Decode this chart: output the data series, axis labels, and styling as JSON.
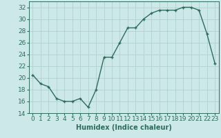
{
  "x": [
    0,
    1,
    2,
    3,
    4,
    5,
    6,
    7,
    8,
    9,
    10,
    11,
    12,
    13,
    14,
    15,
    16,
    17,
    18,
    19,
    20,
    21,
    22,
    23
  ],
  "y": [
    20.5,
    19.0,
    18.5,
    16.5,
    16.0,
    16.0,
    16.5,
    15.0,
    18.0,
    23.5,
    23.5,
    26.0,
    28.5,
    28.5,
    30.0,
    31.0,
    31.5,
    31.5,
    31.5,
    32.0,
    32.0,
    31.5,
    27.5,
    22.5
  ],
  "line_color": "#2e6b5e",
  "marker": "+",
  "bg_color": "#cce8e8",
  "grid_color": "#b0d0d0",
  "xlabel": "Humidex (Indice chaleur)",
  "xlim": [
    -0.5,
    23.5
  ],
  "ylim": [
    14,
    33
  ],
  "yticks": [
    14,
    16,
    18,
    20,
    22,
    24,
    26,
    28,
    30,
    32
  ],
  "xticks": [
    0,
    1,
    2,
    3,
    4,
    5,
    6,
    7,
    8,
    9,
    10,
    11,
    12,
    13,
    14,
    15,
    16,
    17,
    18,
    19,
    20,
    21,
    22,
    23
  ],
  "xlabel_fontsize": 7,
  "tick_fontsize": 6.5,
  "linewidth": 1.0,
  "markersize": 3.5,
  "markeredgewidth": 1.0
}
